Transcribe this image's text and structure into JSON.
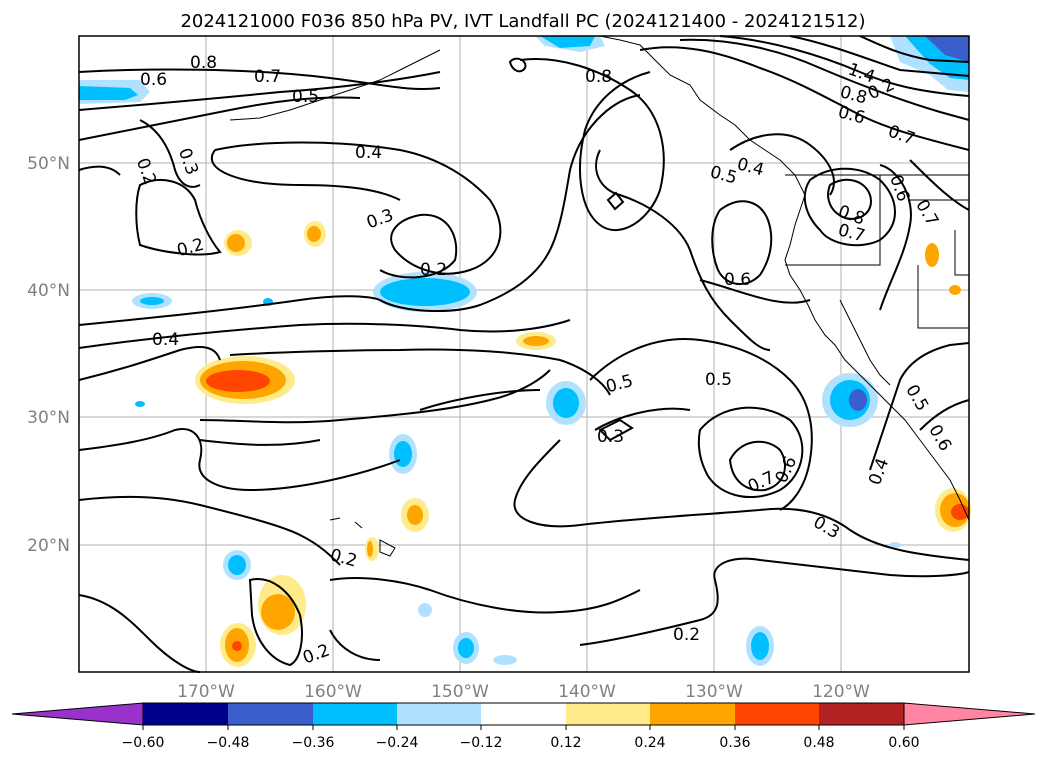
{
  "title": "2024121000 F036 850 hPa PV, IVT Landfall PC (2024121400 - 2024121512)",
  "lat_labels": [
    "50°N",
    "40°N",
    "30°N",
    "20°N"
  ],
  "lon_labels": [
    "170°W",
    "160°W",
    "150°W",
    "140°W",
    "130°W",
    "120°W"
  ],
  "colorbar": {
    "tick_labels": [
      "−0.60",
      "−0.48",
      "−0.36",
      "−0.24",
      "−0.12",
      "0.12",
      "0.24",
      "0.36",
      "0.48",
      "0.60"
    ],
    "colors": [
      "#9932cc",
      "#00008b",
      "#3a5fcd",
      "#00bfff",
      "#b0e2ff",
      "#ffffff",
      "#ffeb8a",
      "#ffa500",
      "#ff4500",
      "#b22222",
      "#ff85a2"
    ]
  },
  "contour_labels": [
    "0.8",
    "0.7",
    "0.6",
    "0.5",
    "0.2",
    "0.3",
    "0.4",
    "0.3",
    "0.2",
    "0.2",
    "0.4",
    "0.8",
    "0.5",
    "0.4",
    "0.8",
    "0.7",
    "0.6",
    "0.7",
    "0.8",
    "0.6",
    "0.7",
    "1.4",
    "0.2",
    "0.6",
    "0.5",
    "0.3",
    "0.5",
    "0.7",
    "0.6",
    "0.3",
    "0.2",
    "0.2",
    "0.2",
    "0.4",
    "0.5",
    "0.6"
  ],
  "colors": {
    "gridline": "#b0b0b0",
    "axis_label": "#808080",
    "contour": "#000000"
  }
}
